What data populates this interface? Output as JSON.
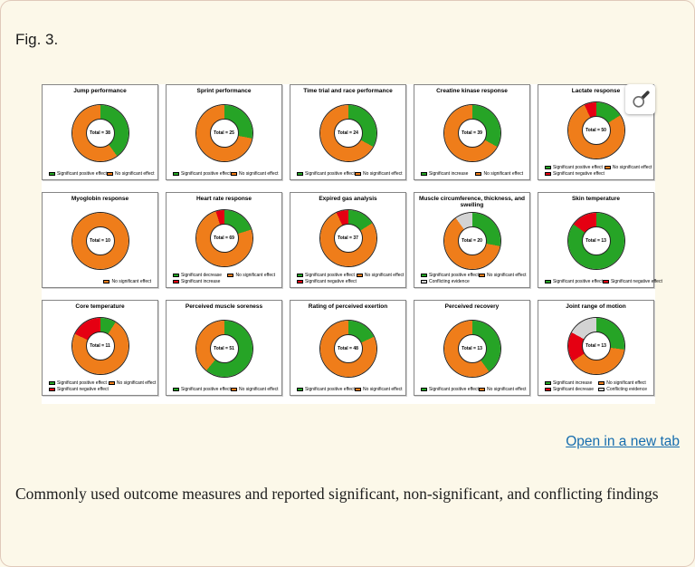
{
  "page": {
    "fig_label": "Fig. 3.",
    "open_link": "Open in a new tab",
    "caption": "Commonly used outcome measures and reported significant, non-significant, and conflicting findings"
  },
  "colors": {
    "green": "#26a426",
    "orange": "#ef7d1a",
    "red": "#e50012",
    "gray": "#d3d3d3"
  },
  "chart_data": [
    {
      "type": "pie",
      "title": "Jump performance",
      "center": "Total = 38",
      "total": 38,
      "slices": [
        {
          "label": "Significant positive effect",
          "color": "green",
          "pct": 40
        },
        {
          "label": "No significant effect",
          "color": "orange",
          "pct": 60
        }
      ],
      "legend": [
        [
          {
            "label": "Significant positive effect",
            "color": "green"
          }
        ],
        [
          {
            "label": "No significant effect",
            "color": "orange"
          }
        ]
      ]
    },
    {
      "type": "pie",
      "title": "Sprint performance",
      "center": "Total = 25",
      "total": 25,
      "slices": [
        {
          "label": "Significant positive effect",
          "color": "green",
          "pct": 28
        },
        {
          "label": "No significant effect",
          "color": "orange",
          "pct": 72
        }
      ],
      "legend": [
        [
          {
            "label": "Significant positive effect",
            "color": "green"
          }
        ],
        [
          {
            "label": "No significant effect",
            "color": "orange"
          }
        ]
      ]
    },
    {
      "type": "pie",
      "title": "Time trial and race performance",
      "center": "Total = 24",
      "total": 24,
      "slices": [
        {
          "label": "Significant positive effect",
          "color": "green",
          "pct": 33
        },
        {
          "label": "No significant effect",
          "color": "orange",
          "pct": 67
        }
      ],
      "legend": [
        [
          {
            "label": "Significant positive effect",
            "color": "green"
          }
        ],
        [
          {
            "label": "No significant effect",
            "color": "orange"
          }
        ]
      ]
    },
    {
      "type": "pie",
      "title": "Creatine kinase response",
      "center": "Total = 39",
      "total": 39,
      "slices": [
        {
          "label": "Significant increase",
          "color": "green",
          "pct": 33
        },
        {
          "label": "No significant effect",
          "color": "orange",
          "pct": 67
        }
      ],
      "legend": [
        [
          {
            "label": "Significant increase",
            "color": "green"
          }
        ],
        [
          {
            "label": "No significant effect",
            "color": "orange"
          }
        ]
      ]
    },
    {
      "type": "pie",
      "title": "Lactate response",
      "center": "Total = 50",
      "total": 50,
      "slices": [
        {
          "label": "Significant positive effect",
          "color": "green",
          "pct": 16
        },
        {
          "label": "No significant effect",
          "color": "orange",
          "pct": 77
        },
        {
          "label": "Significant negative effect",
          "color": "red",
          "pct": 7
        }
      ],
      "legend": [
        [
          {
            "label": "Significant positive effect",
            "color": "green"
          },
          {
            "label": "Significant negative effect",
            "color": "red"
          }
        ],
        [
          {
            "label": "No significant effect",
            "color": "orange"
          }
        ]
      ]
    },
    {
      "type": "pie",
      "title": "Myoglobin response",
      "center": "Total = 10",
      "total": 10,
      "slices": [
        {
          "label": "No significant effect",
          "color": "orange",
          "pct": 100
        }
      ],
      "legend": [
        [],
        [
          {
            "label": "No significant effect",
            "color": "orange"
          }
        ]
      ]
    },
    {
      "type": "pie",
      "title": "Heart rate response",
      "center": "Total = 69",
      "total": 69,
      "slices": [
        {
          "label": "Significant decrease",
          "color": "green",
          "pct": 20
        },
        {
          "label": "No significant effect",
          "color": "orange",
          "pct": 75
        },
        {
          "label": "Significant increase",
          "color": "red",
          "pct": 5
        }
      ],
      "legend": [
        [
          {
            "label": "Significant decrease",
            "color": "green"
          },
          {
            "label": "Significant increase",
            "color": "red"
          }
        ],
        [
          {
            "label": "No significant effect",
            "color": "orange"
          }
        ]
      ]
    },
    {
      "type": "pie",
      "title": "Expired gas analysis",
      "center": "Total = 37",
      "total": 37,
      "slices": [
        {
          "label": "Significant positive effect",
          "color": "green",
          "pct": 16
        },
        {
          "label": "No significant effect",
          "color": "orange",
          "pct": 77
        },
        {
          "label": "Significant negative effect",
          "color": "red",
          "pct": 7
        }
      ],
      "legend": [
        [
          {
            "label": "Significant positive effect",
            "color": "green"
          },
          {
            "label": "Significant negative effect",
            "color": "red"
          }
        ],
        [
          {
            "label": "No significant effect",
            "color": "orange"
          }
        ]
      ]
    },
    {
      "type": "pie",
      "title": "Muscle circumference, thickness, and swelling",
      "center": "Total = 20",
      "total": 20,
      "slices": [
        {
          "label": "Significant positive effect",
          "color": "green",
          "pct": 28
        },
        {
          "label": "No significant effect",
          "color": "orange",
          "pct": 62
        },
        {
          "label": "Conflicting evidence",
          "color": "gray",
          "pct": 10
        }
      ],
      "legend": [
        [
          {
            "label": "Significant positive effect",
            "color": "green"
          },
          {
            "label": "Conflicting evidence",
            "color": "gray"
          }
        ],
        [
          {
            "label": "No significant effect",
            "color": "orange"
          }
        ]
      ]
    },
    {
      "type": "pie",
      "title": "Skin temperature",
      "center": "Total = 13",
      "total": 13,
      "slices": [
        {
          "label": "Significant positive effect",
          "color": "green",
          "pct": 85
        },
        {
          "label": "Significant negative effect",
          "color": "red",
          "pct": 15
        }
      ],
      "legend": [
        [
          {
            "label": "Significant positive effect",
            "color": "green"
          }
        ],
        [
          {
            "label": "Significant negative effect",
            "color": "red"
          }
        ]
      ]
    },
    {
      "type": "pie",
      "title": "Core temperature",
      "center": "Total = 11",
      "total": 11,
      "slices": [
        {
          "label": "Significant positive effect",
          "color": "green",
          "pct": 9
        },
        {
          "label": "No significant effect",
          "color": "orange",
          "pct": 73
        },
        {
          "label": "Significant negative effect",
          "color": "red",
          "pct": 18
        }
      ],
      "legend": [
        [
          {
            "label": "Significant positive effect",
            "color": "green"
          },
          {
            "label": "Significant negative effect",
            "color": "red"
          }
        ],
        [
          {
            "label": "No significant effect",
            "color": "orange"
          }
        ]
      ]
    },
    {
      "type": "pie",
      "title": "Perceived muscle soreness",
      "center": "Total = 51",
      "total": 51,
      "slices": [
        {
          "label": "Significant positive effect",
          "color": "green",
          "pct": 61
        },
        {
          "label": "No significant effect",
          "color": "orange",
          "pct": 39
        }
      ],
      "legend": [
        [
          {
            "label": "Significant positive effect",
            "color": "green"
          }
        ],
        [
          {
            "label": "No significant effect",
            "color": "orange"
          }
        ]
      ]
    },
    {
      "type": "pie",
      "title": "Rating of perceived exertion",
      "center": "Total = 48",
      "total": 48,
      "slices": [
        {
          "label": "Significant positive effect",
          "color": "green",
          "pct": 18
        },
        {
          "label": "No significant effect",
          "color": "orange",
          "pct": 82
        }
      ],
      "legend": [
        [
          {
            "label": "Significant positive effect",
            "color": "green"
          }
        ],
        [
          {
            "label": "No significant effect",
            "color": "orange"
          }
        ]
      ]
    },
    {
      "type": "pie",
      "title": "Perceived recovery",
      "center": "Total = 13",
      "total": 13,
      "slices": [
        {
          "label": "Significant positive effect",
          "color": "green",
          "pct": 40
        },
        {
          "label": "No significant effect",
          "color": "orange",
          "pct": 60
        }
      ],
      "legend": [
        [
          {
            "label": "Significant positive effect",
            "color": "green"
          }
        ],
        [
          {
            "label": "No significant effect",
            "color": "orange"
          }
        ]
      ]
    },
    {
      "type": "pie",
      "title": "Joint range of motion",
      "center": "Total = 13",
      "total": 13,
      "slices": [
        {
          "label": "Significant increase",
          "color": "green",
          "pct": 27
        },
        {
          "label": "No significant effect",
          "color": "orange",
          "pct": 39
        },
        {
          "label": "Significant decrease",
          "color": "red",
          "pct": 17
        },
        {
          "label": "Conflicting evidence",
          "color": "gray",
          "pct": 17
        }
      ],
      "legend": [
        [
          {
            "label": "Significant increase",
            "color": "green"
          },
          {
            "label": "Significant decrease",
            "color": "red"
          }
        ],
        [
          {
            "label": "No significant effect",
            "color": "orange"
          },
          {
            "label": "Conflicting evidence",
            "color": "gray"
          }
        ]
      ]
    }
  ]
}
